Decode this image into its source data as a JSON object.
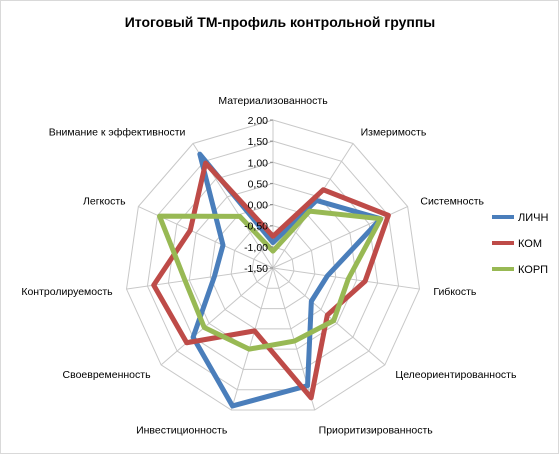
{
  "chart_data": {
    "type": "radar",
    "title": "Итоговый ТМ-профиль контрольной группы",
    "categories": [
      "Материализованность",
      "Измеримость",
      "Системность",
      "Гибкость",
      "Целеориентированность",
      "Приоритизированность",
      "Инвестиционность",
      "Своевременность",
      "Контролируемость",
      "Легкость",
      "Внимание к эффективности"
    ],
    "tick_labels": [
      "-1,50",
      "-1,00",
      "-0,50",
      "0,00",
      "0,50",
      "1,00",
      "1,50",
      "2,00"
    ],
    "rmin": -1.5,
    "rmax": 2.0,
    "grid": true,
    "legend_position": "right",
    "series": [
      {
        "name": "ЛИЧН",
        "color": "#4a7ebb",
        "values": [
          -0.9,
          0.4,
          1.3,
          -0.2,
          -0.3,
          1.4,
          1.9,
          1.0,
          -0.1,
          -0.2,
          1.7
        ]
      },
      {
        "name": "КОМ",
        "color": "#be4b48",
        "values": [
          -0.75,
          0.7,
          1.5,
          0.7,
          0.2,
          1.7,
          0.05,
          1.2,
          1.35,
          0.65,
          1.45
        ]
      },
      {
        "name": "КОРП",
        "color": "#98b954",
        "values": [
          -1.1,
          0.1,
          1.3,
          0.3,
          0.4,
          0.3,
          0.5,
          0.65,
          0.6,
          1.45,
          -0.05
        ]
      }
    ]
  }
}
